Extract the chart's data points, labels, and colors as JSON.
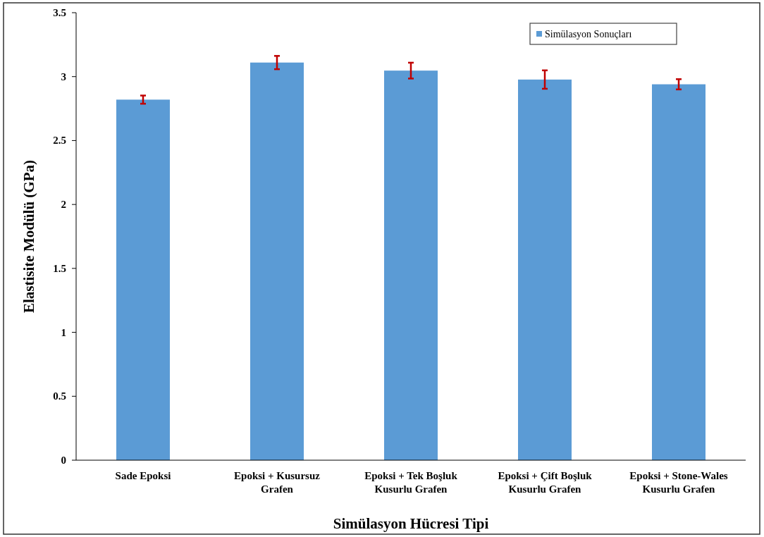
{
  "chart_data": {
    "type": "bar",
    "xlabel": "Simülasyon Hücresi Tipi",
    "ylabel": "Elastisite Modülü (GPa)",
    "categories": [
      "Sade Epoksi",
      "Epoksi + Kusursuz\nGrafen",
      "Epoksi + Tek Boşluk\nKusurlu Grafen",
      "Epoksi + Çift Boşluk\nKusurlu Grafen",
      "Epoksi + Stone-Wales\nKusurlu Grafen"
    ],
    "series": [
      {
        "name": "Simülasyon Sonuçları",
        "color": "#5b9bd5",
        "values": [
          2.82,
          3.11,
          3.047,
          2.977,
          2.94
        ],
        "errors": [
          0.032,
          0.052,
          0.062,
          0.072,
          0.04
        ]
      }
    ],
    "ylim": [
      0,
      3.5
    ],
    "yticks": [
      0,
      0.5,
      1,
      1.5,
      2,
      2.5,
      3,
      3.5
    ],
    "legend": "top right",
    "grid": false
  }
}
